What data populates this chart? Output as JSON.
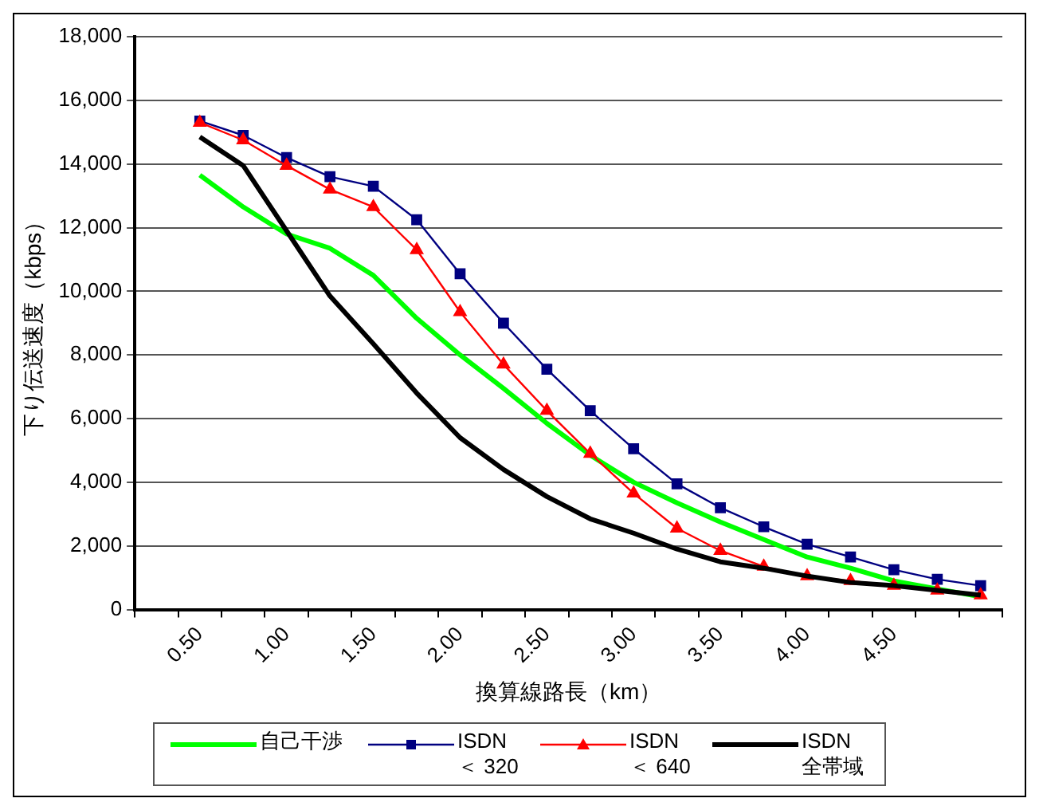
{
  "chart_data": {
    "type": "line",
    "xlabel": "換算線路長（km）",
    "ylabel": "下り伝送速度（kbps）",
    "categories": [
      null,
      "0.50",
      null,
      "1.00",
      null,
      "1.50",
      null,
      "2.00",
      null,
      "2.50",
      null,
      "3.00",
      null,
      "3.50",
      null,
      "4.00",
      null,
      "4.50",
      null,
      null
    ],
    "series": [
      {
        "name": "自己干渉",
        "color": "#00ff00",
        "marker": "none",
        "values": [
          null,
          13650,
          12650,
          11800,
          11350,
          10500,
          9150,
          8000,
          6950,
          5850,
          4850,
          4000,
          3350,
          2750,
          2200,
          1650,
          1300,
          900,
          650,
          400
        ]
      },
      {
        "name": "ISDN ＜ 320",
        "color": "#000080",
        "marker": "square",
        "values": [
          null,
          15350,
          14900,
          14200,
          13600,
          13300,
          12250,
          10550,
          9000,
          7550,
          6250,
          5050,
          3950,
          3200,
          2600,
          2050,
          1650,
          1250,
          950,
          750
        ]
      },
      {
        "name": "ISDN ＜ 640",
        "color": "#ff0000",
        "marker": "triangle",
        "values": [
          null,
          15300,
          14750,
          13950,
          13200,
          12650,
          11300,
          9350,
          7700,
          6250,
          4900,
          3650,
          2550,
          1850,
          1350,
          1050,
          900,
          750,
          600,
          450
        ]
      },
      {
        "name": "ISDN 全帯域",
        "color": "#000000",
        "marker": "none",
        "values": [
          null,
          14850,
          13950,
          11900,
          9850,
          8350,
          6800,
          5400,
          4400,
          3550,
          2850,
          2400,
          1900,
          1500,
          1300,
          1050,
          850,
          750,
          600,
          450
        ]
      }
    ],
    "ylim": [
      0,
      18000
    ],
    "yticks": [
      {
        "value": 0,
        "label": "0"
      },
      {
        "value": 2000,
        "label": "2,000"
      },
      {
        "value": 4000,
        "label": "4,000"
      },
      {
        "value": 6000,
        "label": "6,000"
      },
      {
        "value": 8000,
        "label": "8,000"
      },
      {
        "value": 10000,
        "label": "10,000"
      },
      {
        "value": 12000,
        "label": "12,000"
      },
      {
        "value": 14000,
        "label": "14,000"
      },
      {
        "value": 16000,
        "label": "16,000"
      },
      {
        "value": 18000,
        "label": "18,000"
      }
    ],
    "grid": "y",
    "legend": "bottom"
  }
}
